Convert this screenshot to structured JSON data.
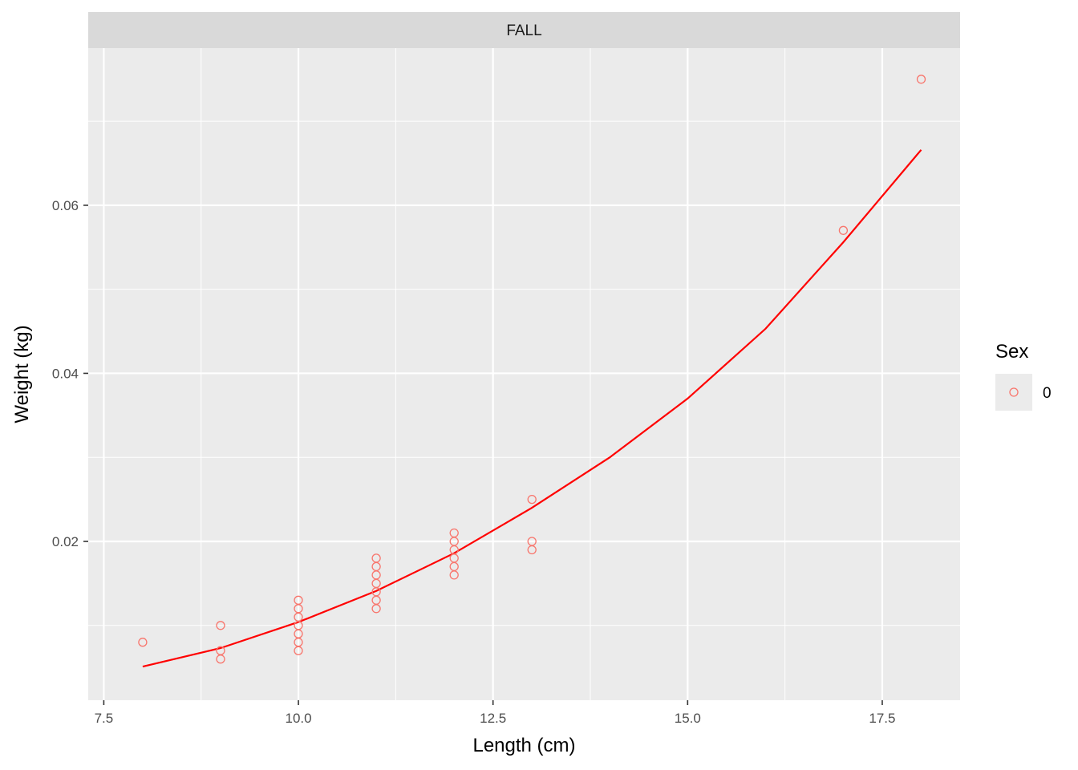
{
  "chart_data": {
    "type": "scatter",
    "facet": "FALL",
    "xlabel": "Length (cm)",
    "ylabel": "Weight (kg)",
    "xlim": [
      7.3,
      18.5
    ],
    "ylim": [
      0.0011,
      0.0787
    ],
    "x_ticks": [
      7.5,
      10.0,
      12.5,
      15.0,
      17.5
    ],
    "x_tick_labels": [
      "7.5",
      "10.0",
      "12.5",
      "15.0",
      "17.5"
    ],
    "y_ticks": [
      0.02,
      0.04,
      0.06
    ],
    "y_tick_labels": [
      "0.02",
      "0.04",
      "0.06"
    ],
    "grid": true,
    "legend": {
      "title": "Sex",
      "entries": [
        "0"
      ],
      "placement": "right"
    },
    "point_color": "#f8766d",
    "line_color": "#ff0000",
    "panel_bg": "#ebebeb",
    "strip_bg": "#d9d9d9",
    "points": [
      [
        8,
        0.008
      ],
      [
        9,
        0.01
      ],
      [
        9,
        0.007
      ],
      [
        9,
        0.006
      ],
      [
        10,
        0.013
      ],
      [
        10,
        0.012
      ],
      [
        10,
        0.011
      ],
      [
        10,
        0.01
      ],
      [
        10,
        0.009
      ],
      [
        10,
        0.008
      ],
      [
        10,
        0.007
      ],
      [
        11,
        0.018
      ],
      [
        11,
        0.017
      ],
      [
        11,
        0.016
      ],
      [
        11,
        0.015
      ],
      [
        11,
        0.014
      ],
      [
        11,
        0.013
      ],
      [
        11,
        0.012
      ],
      [
        12,
        0.021
      ],
      [
        12,
        0.02
      ],
      [
        12,
        0.019
      ],
      [
        12,
        0.018
      ],
      [
        12,
        0.017
      ],
      [
        12,
        0.016
      ],
      [
        13,
        0.025
      ],
      [
        13,
        0.02
      ],
      [
        13,
        0.019
      ],
      [
        17,
        0.057
      ],
      [
        18,
        0.075
      ]
    ],
    "fit_line": [
      [
        8,
        0.0051
      ],
      [
        9,
        0.0073
      ],
      [
        10,
        0.0104
      ],
      [
        11,
        0.0141
      ],
      [
        12,
        0.0186
      ],
      [
        13,
        0.024
      ],
      [
        14,
        0.03
      ],
      [
        15,
        0.037
      ],
      [
        16,
        0.0453
      ],
      [
        17,
        0.0556
      ],
      [
        18,
        0.0666
      ]
    ]
  }
}
